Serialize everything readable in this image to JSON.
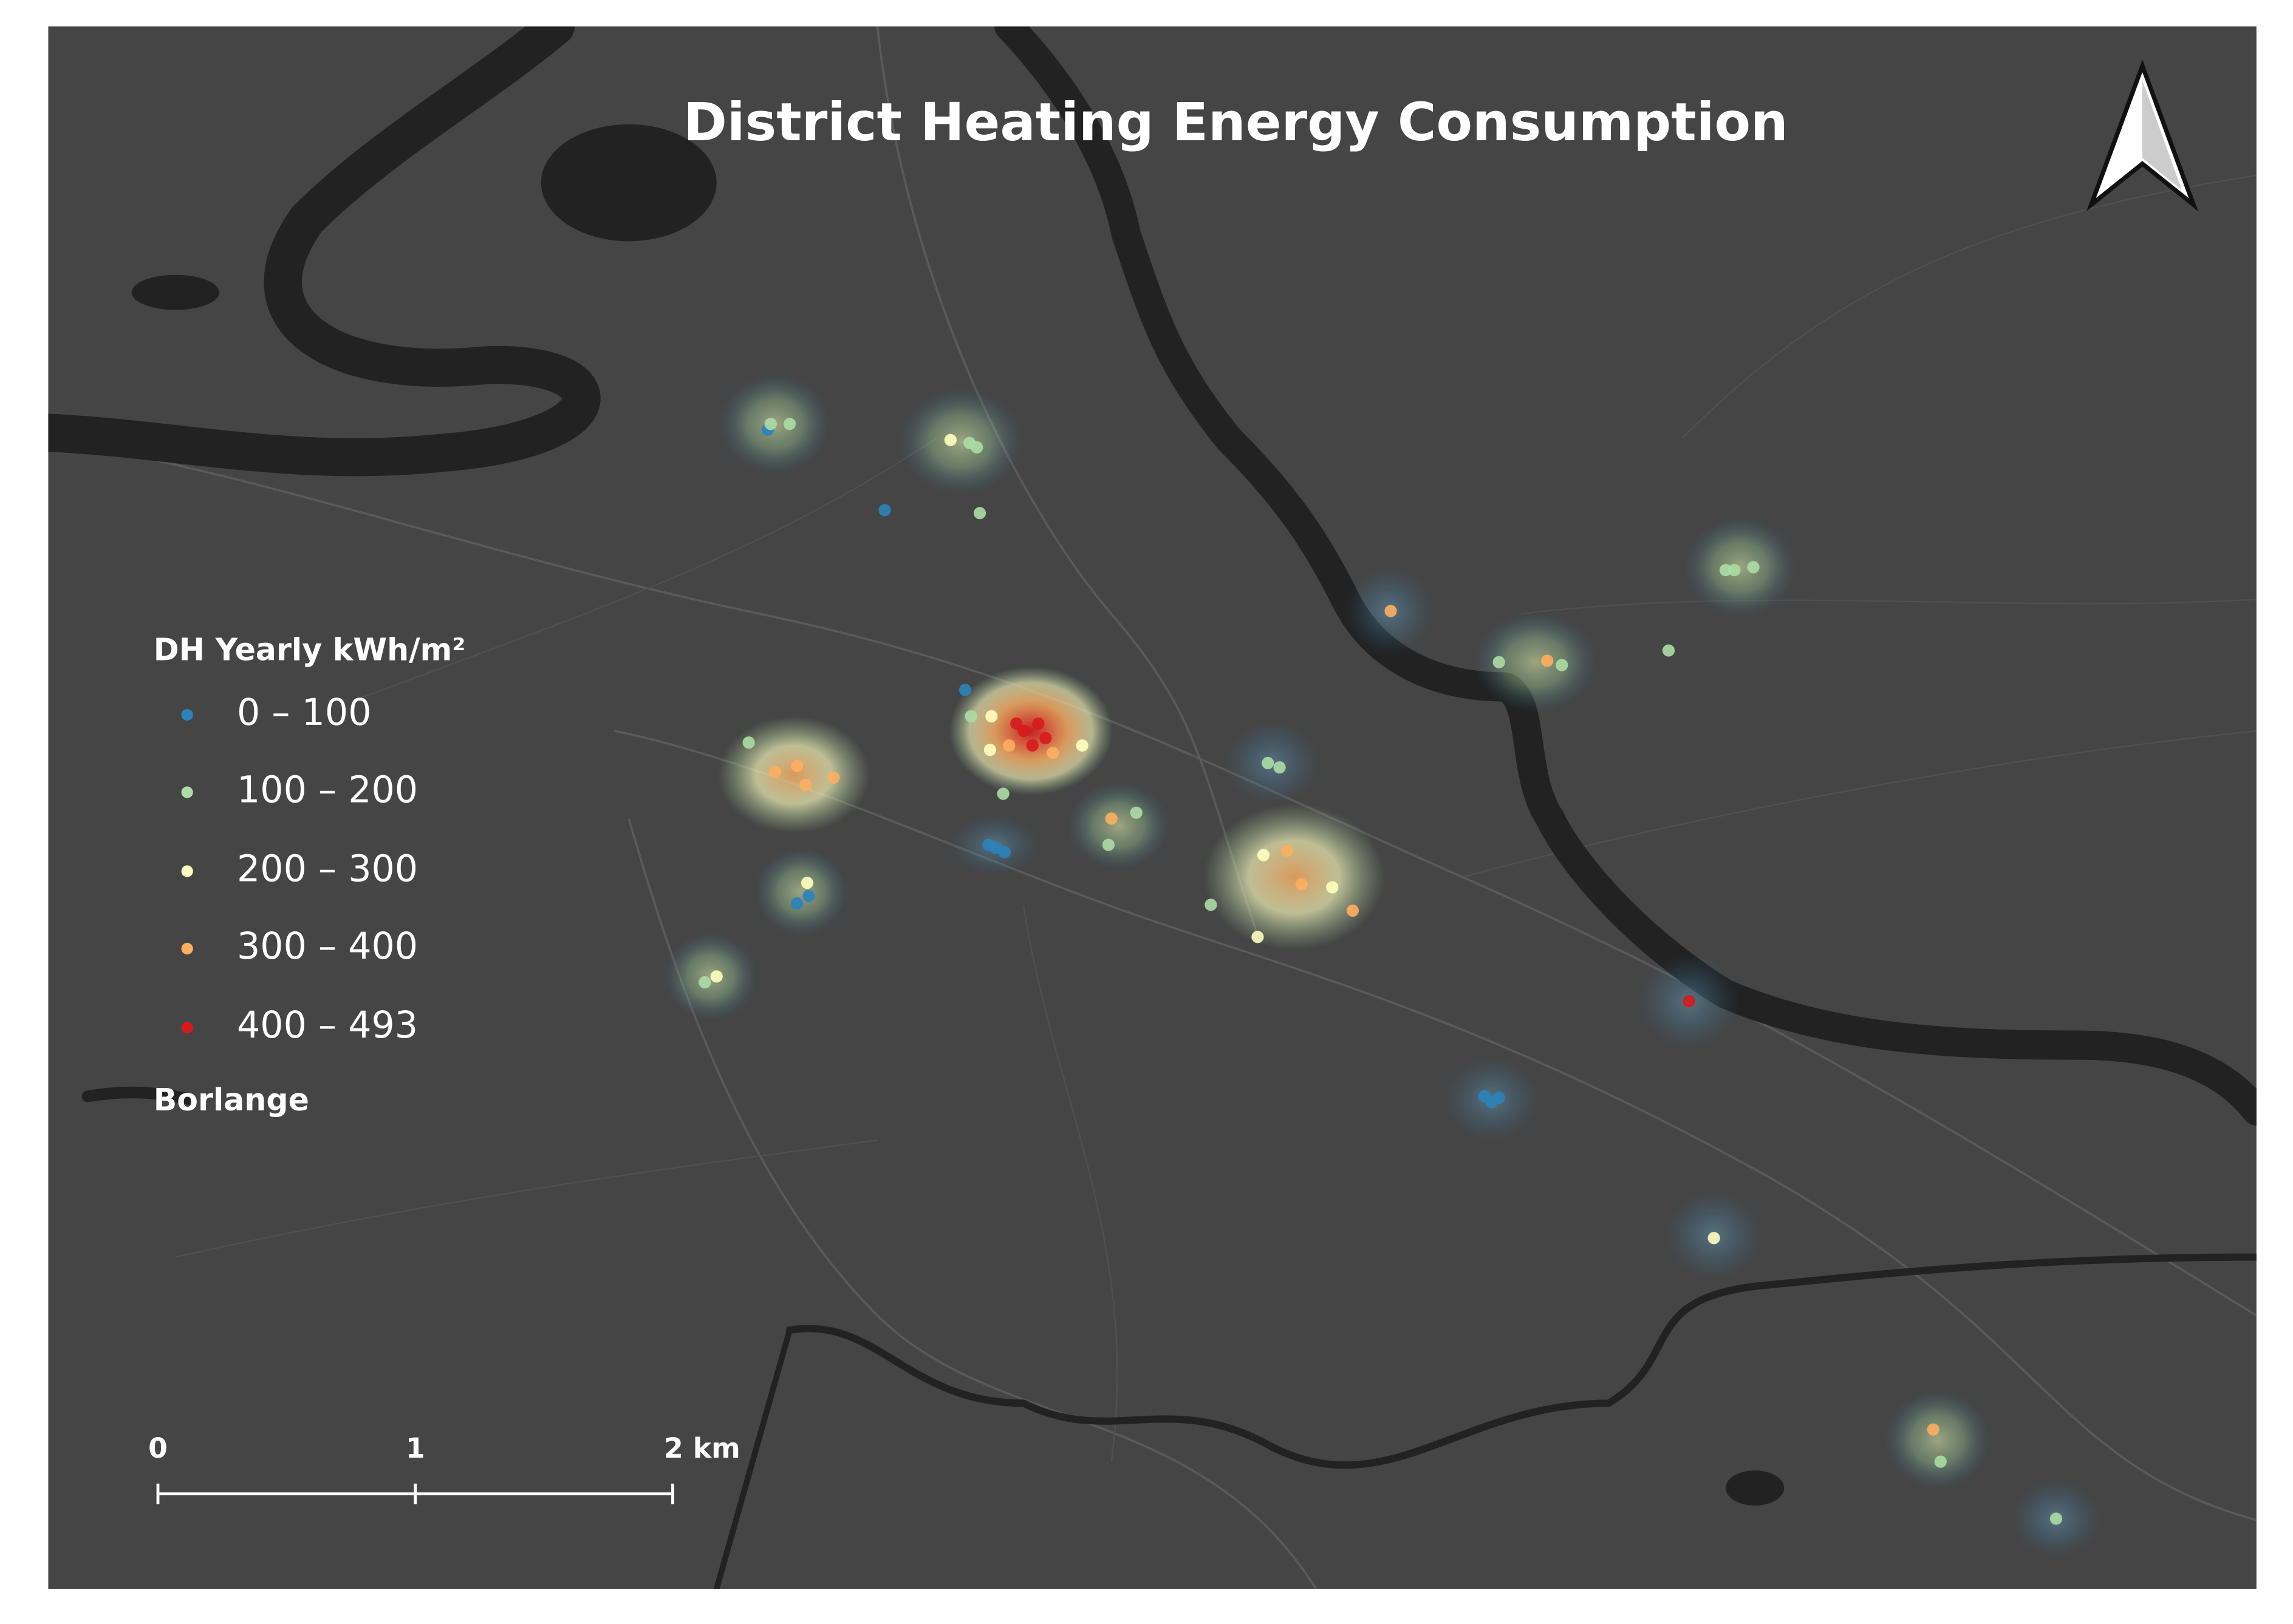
{
  "title": "District Heating Energy Consumption",
  "legend": {
    "title": "DH Yearly kWh/m²",
    "items": [
      {
        "label": "0 – 100",
        "color": "#2b83ba"
      },
      {
        "label": "100 – 200",
        "color": "#abdda4"
      },
      {
        "label": "200 – 300",
        "color": "#ffffbf"
      },
      {
        "label": "300 – 400",
        "color": "#fdae61"
      },
      {
        "label": "400 – 493",
        "color": "#d7191c"
      }
    ],
    "layer": "Borlange"
  },
  "scale_bar": {
    "labels": [
      "0",
      "1",
      "2 km"
    ]
  }
}
